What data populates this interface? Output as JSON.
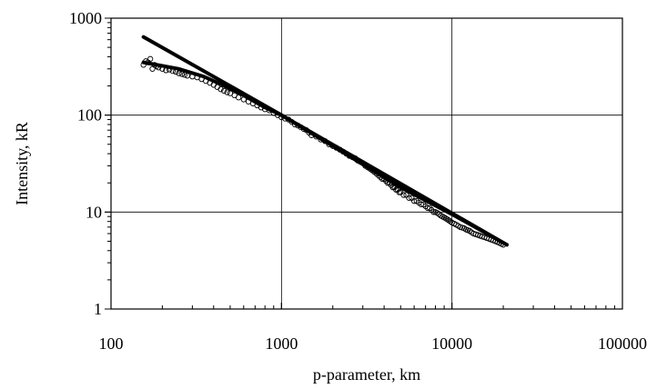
{
  "chart_data": {
    "type": "scatter",
    "title": "",
    "xlabel": "p-parameter, km",
    "ylabel": "Intensity, kR",
    "x_scale": "log",
    "y_scale": "log",
    "xlim": [
      100,
      100000
    ],
    "ylim": [
      1,
      1000
    ],
    "x_ticks": [
      "100",
      "1000",
      "10000",
      "100000"
    ],
    "y_ticks": [
      "1",
      "10",
      "100",
      "1000"
    ],
    "grid": true,
    "legend": "none",
    "marker": "open-circle",
    "colors": {
      "marker": "#000000",
      "line": "#000000",
      "grid": "#000000"
    },
    "series": [
      {
        "kind": "scatter",
        "x": [
          155,
          160,
          165,
          170,
          175,
          180,
          185,
          190,
          200,
          210,
          220,
          230,
          240,
          250,
          260,
          270,
          280,
          300,
          320,
          340,
          360,
          380,
          400,
          420,
          440,
          460,
          480,
          500,
          530,
          560,
          600,
          640,
          680,
          720,
          760,
          800,
          850,
          900,
          950,
          1000,
          1050,
          1100,
          1150,
          1200,
          1250,
          1300,
          1350,
          1400,
          1450,
          1500,
          1600,
          1700,
          1800,
          1900,
          2000,
          2100,
          2200,
          2300,
          2400,
          2500,
          2600,
          2700,
          2800,
          2900,
          3000,
          3100,
          3200,
          3300,
          3400,
          3500,
          3600,
          3700,
          3800,
          3900,
          4000,
          4100,
          4200,
          4300,
          4400,
          4500,
          4600,
          4700,
          4800,
          4900,
          5000,
          5200,
          5400,
          5600,
          5800,
          6000,
          6200,
          6400,
          6600,
          6800,
          7000,
          7200,
          7400,
          7600,
          7800,
          8000,
          8200,
          8400,
          8600,
          8800,
          9000,
          9200,
          9400,
          9600,
          9800,
          10000,
          10300,
          10600,
          10900,
          11200,
          11500,
          11800,
          12100,
          12400,
          12700,
          13000,
          13400,
          13800,
          14200,
          14600,
          15000,
          15500,
          16000,
          16500,
          17000,
          17500,
          18000,
          18500,
          19000,
          19500,
          20000
        ],
        "y": [
          330,
          360,
          350,
          380,
          300,
          330,
          320,
          310,
          300,
          290,
          295,
          285,
          280,
          270,
          265,
          260,
          255,
          250,
          245,
          235,
          225,
          215,
          205,
          195,
          185,
          178,
          172,
          168,
          160,
          152,
          145,
          138,
          132,
          126,
          120,
          115,
          112,
          105,
          100,
          95,
          92,
          90,
          85,
          80,
          78,
          75,
          72,
          70,
          66,
          62,
          60,
          56,
          54,
          50,
          48,
          46,
          44,
          42,
          40,
          38,
          37,
          36,
          34,
          33,
          32,
          30,
          29,
          28,
          27,
          26,
          25,
          24,
          23,
          22,
          22,
          21,
          20,
          20,
          19,
          18,
          18,
          17,
          17,
          16,
          16,
          15,
          15,
          14,
          14,
          13,
          13,
          12.5,
          12,
          12,
          11.5,
          11,
          11,
          10.5,
          10,
          10,
          9.8,
          9.5,
          9.2,
          9,
          8.8,
          8.6,
          8.4,
          8.2,
          8,
          7.8,
          7.6,
          7.4,
          7.2,
          7,
          6.9,
          6.8,
          6.6,
          6.5,
          6.4,
          6.2,
          6,
          5.9,
          5.8,
          5.7,
          5.6,
          5.5,
          5.4,
          5.3,
          5.2,
          5.1,
          5,
          4.9,
          4.8,
          4.7,
          4.6
        ]
      },
      {
        "kind": "line",
        "x": [
          155,
          500,
          1000,
          21000
        ],
        "y": [
          640,
          200,
          100,
          4.6
        ]
      },
      {
        "kind": "line",
        "x": [
          155,
          250,
          350,
          450,
          600,
          800,
          1000,
          2000,
          5000,
          10000,
          21000
        ],
        "y": [
          350,
          300,
          250,
          205,
          160,
          120,
          100,
          48,
          18,
          9.5,
          4.6
        ]
      }
    ]
  }
}
